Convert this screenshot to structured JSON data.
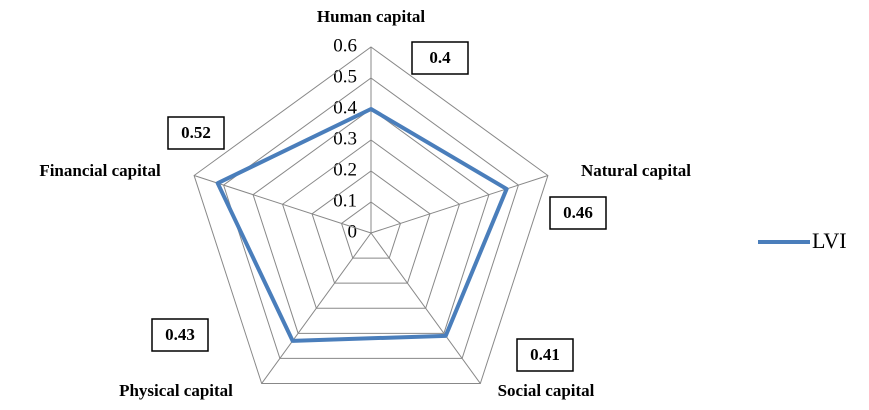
{
  "chart_data": {
    "type": "radar",
    "categories": [
      "Human capital",
      "Natural capital",
      "Social capital",
      "Physical capital",
      "Financial capital"
    ],
    "series": [
      {
        "name": "LVI",
        "color": "#4a7ebb",
        "values": [
          0.4,
          0.46,
          0.41,
          0.43,
          0.52
        ]
      }
    ],
    "rlim": [
      0,
      0.6
    ],
    "rticks": [
      0,
      0.1,
      0.2,
      0.3,
      0.4,
      0.5,
      0.6
    ],
    "grid": true,
    "legend": "right"
  }
}
